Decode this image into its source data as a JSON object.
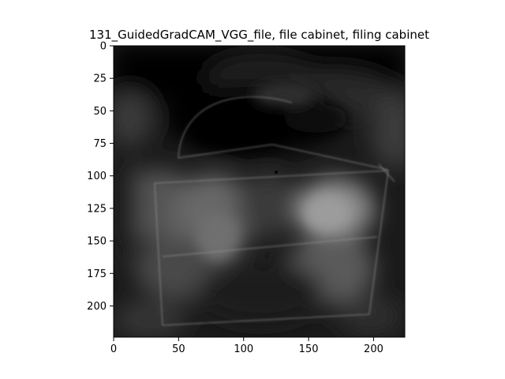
{
  "chart_data": {
    "type": "heatmap",
    "title": "131_GuidedGradCAM_VGG_file, file cabinet, filing cabinet",
    "xlabel": "",
    "ylabel": "",
    "xlim": [
      0,
      224
    ],
    "ylim": [
      224,
      0
    ],
    "x_ticks": [
      0,
      50,
      100,
      150,
      200
    ],
    "y_ticks": [
      0,
      25,
      50,
      75,
      100,
      125,
      150,
      175,
      200
    ],
    "colormap": "grayscale",
    "grid": false,
    "legend": "none",
    "image_size": [
      224,
      224
    ]
  }
}
